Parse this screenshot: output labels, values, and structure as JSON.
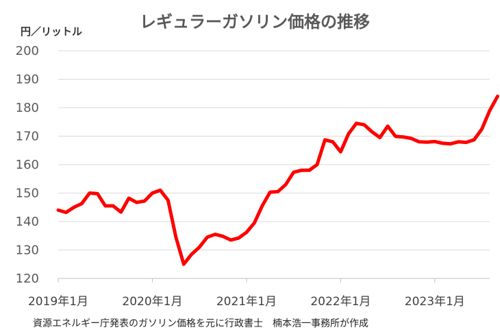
{
  "chart_data": {
    "type": "line",
    "title": "レギュラーガソリン価格の推移",
    "unit_label": "円／リットル",
    "source_note": "資源エネルギー庁発表のガソリン価格を元に行政書士　楠本浩一事務所が作成",
    "ylim": [
      120,
      200
    ],
    "yticks": [
      120,
      130,
      140,
      150,
      160,
      170,
      180,
      190,
      200
    ],
    "x_tick_labels": [
      {
        "month_index": 0,
        "label": "2019年1月"
      },
      {
        "month_index": 12,
        "label": "2020年1月"
      },
      {
        "month_index": 24,
        "label": "2021年1月"
      },
      {
        "month_index": 36,
        "label": "2022年1月"
      },
      {
        "month_index": 48,
        "label": "2023年1月"
      }
    ],
    "x_range_months": [
      0,
      55
    ],
    "grid": "horizontal",
    "series": [
      {
        "color": "#ff0000",
        "values": [
          144,
          143.2,
          145,
          146.3,
          150,
          149.8,
          145.5,
          145.5,
          143.3,
          148.2,
          146.7,
          147.2,
          150,
          151,
          147.5,
          134.5,
          125,
          128.5,
          131,
          134.5,
          135.5,
          134.8,
          133.5,
          134.2,
          136.2,
          139.5,
          145.5,
          150.3,
          150.5,
          153,
          157.3,
          158,
          158,
          160,
          168.7,
          168,
          164.5,
          170.8,
          174.5,
          174,
          171.5,
          169.5,
          173.5,
          169.9,
          169.7,
          169.2,
          168,
          167.9,
          168.1,
          167.5,
          167.3,
          168,
          167.8,
          168.7,
          172.5,
          179,
          184
        ]
      }
    ]
  }
}
